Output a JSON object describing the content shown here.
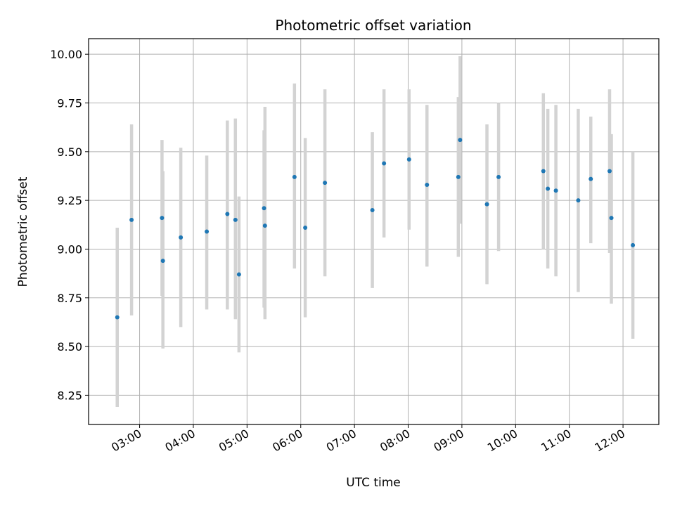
{
  "chart_data": {
    "type": "scatter",
    "title": "Photometric offset variation",
    "xlabel": "UTC time",
    "ylabel": "Photometric offset",
    "grid": true,
    "x_tick_labels": [
      "03:00",
      "04:00",
      "05:00",
      "06:00",
      "07:00",
      "08:00",
      "09:00",
      "10:00",
      "11:00",
      "12:00"
    ],
    "x_ticks_hours": [
      3,
      4,
      5,
      6,
      7,
      8,
      9,
      10,
      11,
      12
    ],
    "y_tick_labels": [
      "8.25",
      "8.50",
      "8.75",
      "9.00",
      "9.25",
      "9.50",
      "9.75",
      "10.00"
    ],
    "y_ticks": [
      8.25,
      8.5,
      8.75,
      9.0,
      9.25,
      9.5,
      9.75,
      10.0
    ],
    "xlim": [
      "02:03",
      "12:40"
    ],
    "ylim": [
      8.1,
      10.08
    ],
    "colors": {
      "marker": "#1f77b4",
      "errorbar": "#d3d3d3",
      "grid": "#b0b0b0"
    },
    "points": [
      {
        "x": "02:35",
        "y": 8.65,
        "low": 8.19,
        "high": 9.11
      },
      {
        "x": "02:51",
        "y": 9.15,
        "low": 8.66,
        "high": 9.64
      },
      {
        "x": "03:25",
        "y": 9.16,
        "low": 8.76,
        "high": 9.56
      },
      {
        "x": "03:26",
        "y": 8.94,
        "low": 8.49,
        "high": 9.4
      },
      {
        "x": "03:46",
        "y": 9.06,
        "low": 8.6,
        "high": 9.52
      },
      {
        "x": "04:15",
        "y": 9.09,
        "low": 8.69,
        "high": 9.48
      },
      {
        "x": "04:38",
        "y": 9.18,
        "low": 8.69,
        "high": 9.66
      },
      {
        "x": "04:47",
        "y": 9.15,
        "low": 8.64,
        "high": 9.67
      },
      {
        "x": "04:51",
        "y": 8.87,
        "low": 8.47,
        "high": 9.27
      },
      {
        "x": "05:19",
        "y": 9.21,
        "low": 8.7,
        "high": 9.61
      },
      {
        "x": "05:20",
        "y": 9.12,
        "low": 8.64,
        "high": 9.73
      },
      {
        "x": "05:53",
        "y": 9.37,
        "low": 8.9,
        "high": 9.85
      },
      {
        "x": "06:05",
        "y": 9.11,
        "low": 8.65,
        "high": 9.57
      },
      {
        "x": "06:27",
        "y": 9.34,
        "low": 8.86,
        "high": 9.82
      },
      {
        "x": "07:20",
        "y": 9.2,
        "low": 8.8,
        "high": 9.6
      },
      {
        "x": "07:33",
        "y": 9.44,
        "low": 9.06,
        "high": 9.82
      },
      {
        "x": "08:01",
        "y": 9.46,
        "low": 9.1,
        "high": 9.82
      },
      {
        "x": "08:21",
        "y": 9.33,
        "low": 8.91,
        "high": 9.74
      },
      {
        "x": "08:56",
        "y": 9.37,
        "low": 8.96,
        "high": 9.78
      },
      {
        "x": "08:58",
        "y": 9.56,
        "low": 9.13,
        "high": 9.99
      },
      {
        "x": "09:28",
        "y": 9.23,
        "low": 8.82,
        "high": 9.64
      },
      {
        "x": "09:41",
        "y": 9.37,
        "low": 8.99,
        "high": 9.75
      },
      {
        "x": "10:31",
        "y": 9.4,
        "low": 9.0,
        "high": 9.8
      },
      {
        "x": "10:36",
        "y": 9.31,
        "low": 8.9,
        "high": 9.72
      },
      {
        "x": "10:45",
        "y": 9.3,
        "low": 8.86,
        "high": 9.74
      },
      {
        "x": "11:10",
        "y": 9.25,
        "low": 8.78,
        "high": 9.72
      },
      {
        "x": "11:24",
        "y": 9.36,
        "low": 9.03,
        "high": 9.68
      },
      {
        "x": "11:45",
        "y": 9.4,
        "low": 8.98,
        "high": 9.82
      },
      {
        "x": "11:47",
        "y": 9.16,
        "low": 8.72,
        "high": 9.59
      },
      {
        "x": "12:11",
        "y": 9.02,
        "low": 8.54,
        "high": 9.5
      }
    ]
  }
}
